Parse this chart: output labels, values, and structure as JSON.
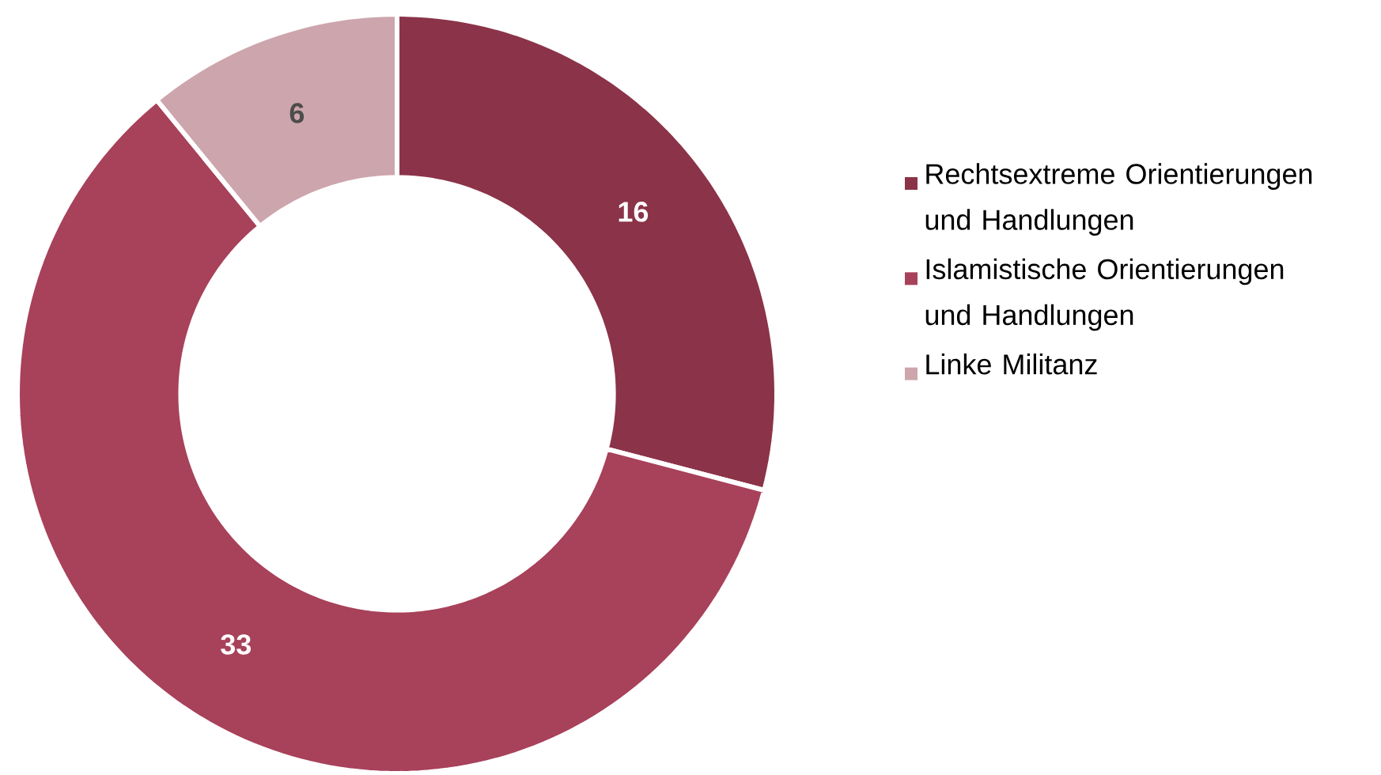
{
  "chart_data": {
    "type": "donut",
    "categories": [
      "Rechtsextreme Orientierungen und Handlungen",
      "Islamistische Orientierungen und Handlungen",
      "Linke Militanz"
    ],
    "values": [
      16,
      33,
      6
    ],
    "colors": [
      "#8b3348",
      "#a8415a",
      "#cda5ad"
    ],
    "data_labels": true,
    "legend": "right"
  }
}
